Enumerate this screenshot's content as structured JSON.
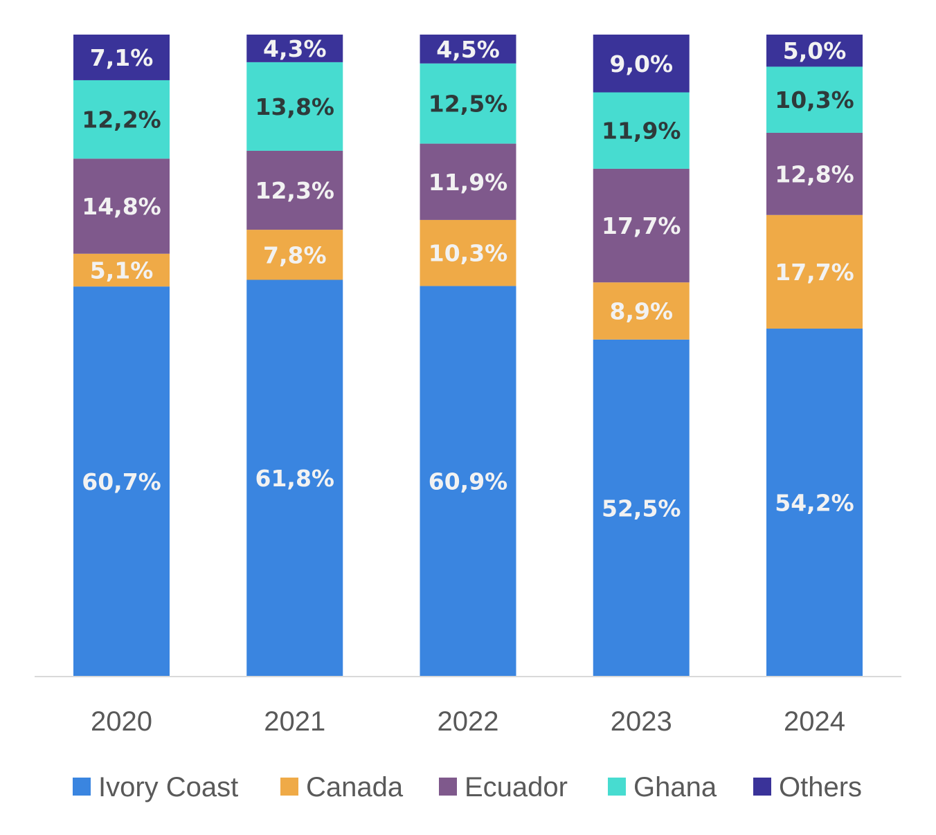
{
  "chart_data": {
    "type": "bar",
    "stacked": true,
    "categories": [
      "2020",
      "2021",
      "2022",
      "2023",
      "2024"
    ],
    "series": [
      {
        "name": "Ivory Coast",
        "color": "#3A85E0",
        "label_color": "#F2F2F2",
        "values": [
          60.7,
          61.8,
          60.9,
          52.5,
          54.2
        ],
        "labels": [
          "60,7%",
          "61,8%",
          "60,9%",
          "52,5%",
          "54,2%"
        ]
      },
      {
        "name": "Canada",
        "color": "#EFAA47",
        "label_color": "#F2F2F2",
        "values": [
          5.1,
          7.8,
          10.3,
          8.9,
          17.7
        ],
        "labels": [
          "5,1%",
          "7,8%",
          "10,3%",
          "8,9%",
          "17,7%"
        ]
      },
      {
        "name": "Ecuador",
        "color": "#7F598C",
        "label_color": "#F2F2F2",
        "values": [
          14.8,
          12.3,
          11.9,
          17.7,
          12.8
        ],
        "labels": [
          "14,8%",
          "12,3%",
          "11,9%",
          "17,7%",
          "12,8%"
        ]
      },
      {
        "name": "Ghana",
        "color": "#47DCD0",
        "label_color": "#2E3A3A",
        "values": [
          12.2,
          13.8,
          12.5,
          11.9,
          10.3
        ],
        "labels": [
          "12,2%",
          "13,8%",
          "12,5%",
          "11,9%",
          "10,3%"
        ]
      },
      {
        "name": "Others",
        "color": "#3A3399",
        "label_color": "#F2F2F2",
        "values": [
          7.1,
          4.3,
          4.5,
          9.0,
          5.0
        ],
        "labels": [
          "7,1%",
          "4,3%",
          "4,5%",
          "9,0%",
          "5,0%"
        ]
      }
    ],
    "ylim": [
      0,
      100
    ],
    "grid": false,
    "legend": "bottom",
    "axis_color": "#D9D9D9"
  }
}
